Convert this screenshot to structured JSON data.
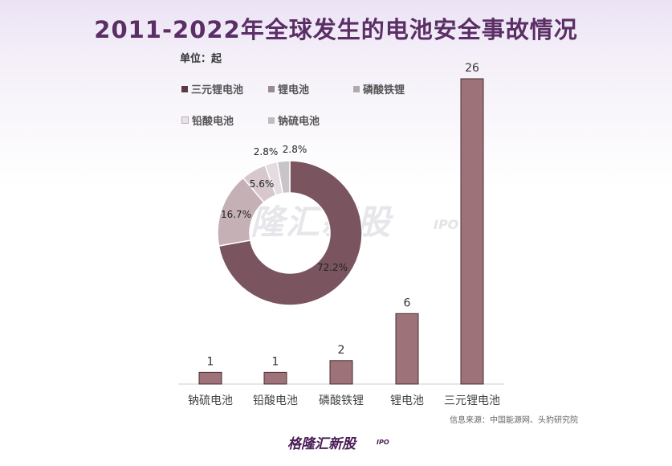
{
  "title": "2011-2022年全球发生的电池安全事故情况",
  "unit_label": "单位：起",
  "source": "信息来源：中国能源网、头豹研究院",
  "watermark": "格隆汇新股",
  "watermark_sub": "IPO",
  "footer_logo": "格隆汇新股",
  "footer_sub": "IPO",
  "colors": {
    "bar": "#9d7278",
    "bar_stroke": "#4a2d33",
    "title": "#5b2f66",
    "donut": [
      "#7a5560",
      "#c4b0b5",
      "#d6c8cd",
      "#e4dce0",
      "#c8c4c8"
    ]
  },
  "chart_data": [
    {
      "type": "bar",
      "categories": [
        "钠硫电池",
        "铅酸电池",
        "磷酸铁锂",
        "锂电池",
        "三元锂电池"
      ],
      "values": [
        1,
        1,
        2,
        6,
        26
      ],
      "ylim": [
        0,
        28
      ],
      "grid": false
    },
    {
      "type": "pie",
      "donut": true,
      "labels": [
        "三元锂电池",
        "锂电池",
        "磷酸铁锂",
        "铅酸电池",
        "钠硫电池"
      ],
      "values": [
        72.2,
        16.7,
        5.6,
        2.8,
        2.8
      ],
      "value_labels": [
        "72.2%",
        "16.7%",
        "5.6%",
        "2.8%",
        "2.8%"
      ],
      "legend_position": "top-left"
    }
  ]
}
